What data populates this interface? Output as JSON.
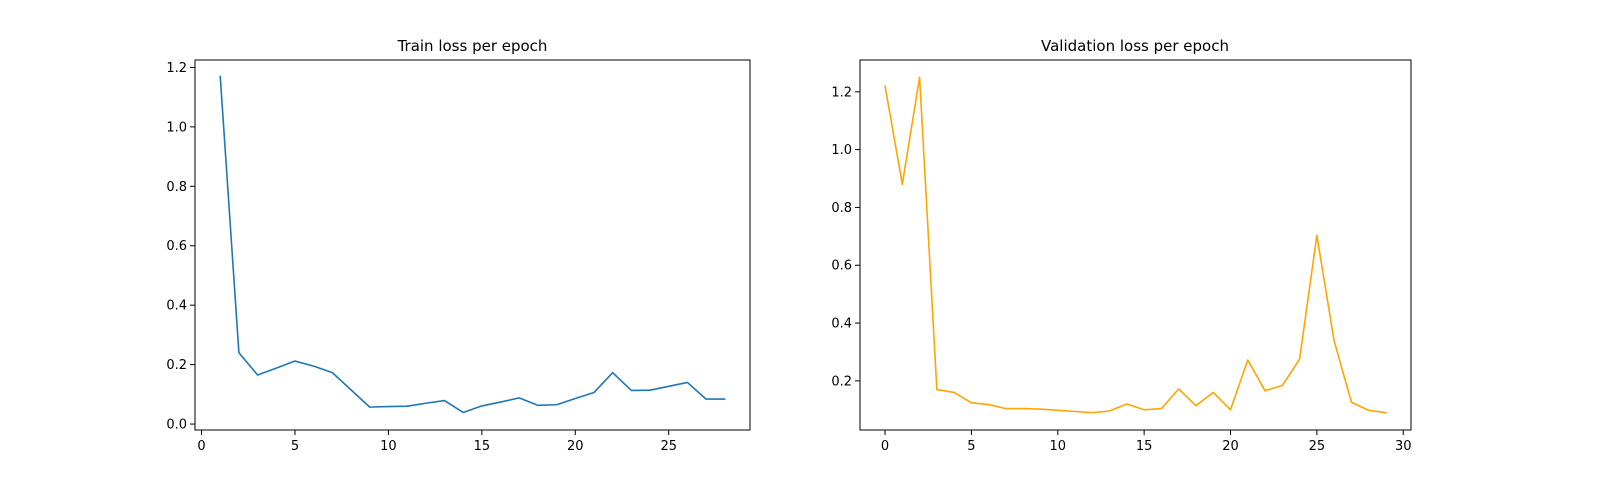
{
  "chart_data": [
    {
      "type": "line",
      "title": "Train loss per epoch",
      "xlabel": "",
      "ylabel": "",
      "xlim": [
        -0.35,
        29.35
      ],
      "ylim": [
        -0.02,
        1.225
      ],
      "xticks": [
        0,
        5,
        10,
        15,
        20,
        25
      ],
      "yticks": [
        0.0,
        0.2,
        0.4,
        0.6,
        0.8,
        1.0,
        1.2
      ],
      "xtick_labels": [
        "0",
        "5",
        "10",
        "15",
        "20",
        "25"
      ],
      "ytick_labels": [
        "0.0",
        "0.2",
        "0.4",
        "0.6",
        "0.8",
        "1.0",
        "1.2"
      ],
      "grid": false,
      "series": [
        {
          "color": "#1f77b4",
          "x": [
            1,
            2,
            3,
            4,
            5,
            6,
            7,
            8,
            9,
            10,
            11,
            12,
            13,
            14,
            15,
            16,
            17,
            18,
            19,
            20,
            21,
            22,
            23,
            24,
            25,
            26,
            27,
            28
          ],
          "y": [
            1.17,
            0.24,
            0.165,
            0.188,
            0.212,
            0.195,
            0.173,
            0.115,
            0.057,
            0.059,
            0.06,
            0.07,
            0.079,
            0.039,
            0.061,
            0.074,
            0.088,
            0.063,
            0.065,
            0.086,
            0.106,
            0.173,
            0.113,
            0.114,
            0.127,
            0.14,
            0.084,
            0.084
          ]
        }
      ]
    },
    {
      "type": "line",
      "title": "Validation loss per epoch",
      "xlabel": "",
      "ylabel": "",
      "xlim": [
        -1.45,
        30.45
      ],
      "ylim": [
        0.03,
        1.31
      ],
      "xticks": [
        0,
        5,
        10,
        15,
        20,
        25,
        30
      ],
      "yticks": [
        0.2,
        0.4,
        0.6,
        0.8,
        1.0,
        1.2
      ],
      "xtick_labels": [
        "0",
        "5",
        "10",
        "15",
        "20",
        "25",
        "30"
      ],
      "ytick_labels": [
        "0.2",
        "0.4",
        "0.6",
        "0.8",
        "1.0",
        "1.2"
      ],
      "grid": false,
      "series": [
        {
          "color": "#ffa500",
          "x": [
            0,
            1,
            2,
            3,
            4,
            5,
            6,
            7,
            8,
            9,
            10,
            11,
            12,
            13,
            14,
            15,
            16,
            17,
            18,
            19,
            20,
            21,
            22,
            23,
            24,
            25,
            26,
            27,
            28,
            29
          ],
          "y": [
            1.22,
            0.88,
            1.25,
            0.17,
            0.16,
            0.124,
            0.118,
            0.104,
            0.104,
            0.102,
            0.098,
            0.094,
            0.09,
            0.096,
            0.12,
            0.1,
            0.104,
            0.172,
            0.114,
            0.16,
            0.1,
            0.272,
            0.166,
            0.184,
            0.275,
            0.703,
            0.338,
            0.126,
            0.098,
            0.09
          ]
        }
      ]
    }
  ]
}
